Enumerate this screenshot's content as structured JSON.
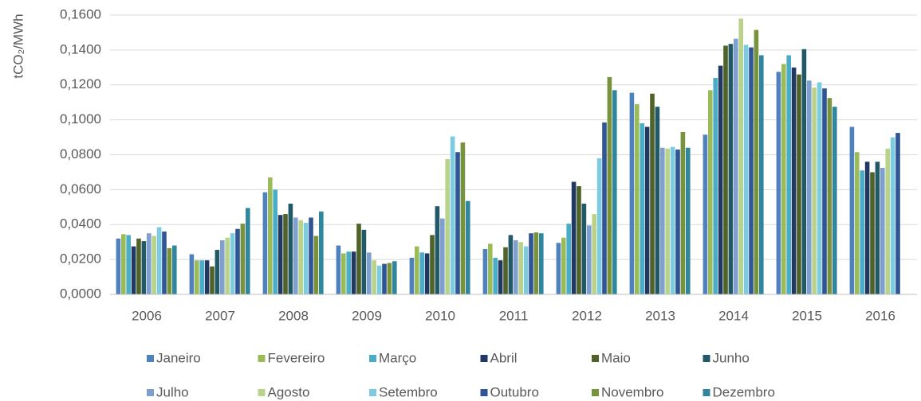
{
  "chart_data": {
    "type": "bar",
    "y_label": "tCO₂/MWh",
    "categories": [
      "2006",
      "2007",
      "2008",
      "2009",
      "2010",
      "2011",
      "2012",
      "2013",
      "2014",
      "2015",
      "2016"
    ],
    "ylim": [
      0,
      0.16
    ],
    "yticks": [
      {
        "value": 0,
        "label": "0,0000"
      },
      {
        "value": 0.02,
        "label": "0,0200"
      },
      {
        "value": 0.04,
        "label": "0,0400"
      },
      {
        "value": 0.06,
        "label": "0,0600"
      },
      {
        "value": 0.08,
        "label": "0,0800"
      },
      {
        "value": 0.1,
        "label": "0,1000"
      },
      {
        "value": 0.12,
        "label": "0,1200"
      },
      {
        "value": 0.14,
        "label": "0,1400"
      },
      {
        "value": 0.16,
        "label": "0,1600"
      }
    ],
    "grid": true,
    "legend": "bottom",
    "series": [
      {
        "name": "Janeiro",
        "color": "#4f81bd",
        "values": [
          0.032,
          0.023,
          0.0585,
          0.028,
          0.021,
          0.026,
          0.0295,
          0.1155,
          0.0915,
          0.1275,
          0.096
        ]
      },
      {
        "name": "Fevereiro",
        "color": "#9bbb59",
        "values": [
          0.0345,
          0.0195,
          0.067,
          0.0235,
          0.0275,
          0.029,
          0.0325,
          0.109,
          0.117,
          0.132,
          0.0815
        ]
      },
      {
        "name": "Março",
        "color": "#4bacc6",
        "values": [
          0.034,
          0.0195,
          0.06,
          0.0245,
          0.024,
          0.021,
          0.0405,
          0.098,
          0.124,
          0.137,
          0.071
        ]
      },
      {
        "name": "Abril",
        "color": "#1f3864",
        "values": [
          0.0275,
          0.0195,
          0.0455,
          0.0245,
          0.0235,
          0.0195,
          0.0645,
          0.096,
          0.131,
          0.13,
          0.076
        ]
      },
      {
        "name": "Maio",
        "color": "#4f6228",
        "values": [
          0.032,
          0.016,
          0.046,
          0.0405,
          0.034,
          0.027,
          0.062,
          0.115,
          0.1425,
          0.126,
          0.07
        ]
      },
      {
        "name": "Junho",
        "color": "#215968",
        "values": [
          0.0305,
          0.0255,
          0.052,
          0.037,
          0.0505,
          0.034,
          0.052,
          0.1075,
          0.1435,
          0.1405,
          0.076
        ]
      },
      {
        "name": "Julho",
        "color": "#7f9fcf",
        "values": [
          0.035,
          0.031,
          0.044,
          0.024,
          0.0435,
          0.031,
          0.0395,
          0.084,
          0.1465,
          0.1225,
          0.0725
        ]
      },
      {
        "name": "Agosto",
        "color": "#b9d38b",
        "values": [
          0.0335,
          0.0325,
          0.0425,
          0.0195,
          0.0775,
          0.03,
          0.046,
          0.0835,
          0.158,
          0.1185,
          0.0835
        ]
      },
      {
        "name": "Setembro",
        "color": "#7dcbe0",
        "values": [
          0.0385,
          0.035,
          0.041,
          0.0165,
          0.0905,
          0.0275,
          0.078,
          0.0845,
          0.143,
          0.1215,
          0.09
        ]
      },
      {
        "name": "Outubro",
        "color": "#2f5597",
        "values": [
          0.036,
          0.0375,
          0.044,
          0.0175,
          0.0815,
          0.035,
          0.0985,
          0.083,
          0.1415,
          0.118,
          0.0925
        ]
      },
      {
        "name": "Novembro",
        "color": "#77933c",
        "values": [
          0.0265,
          0.0405,
          0.0335,
          0.018,
          0.087,
          0.0355,
          0.1245,
          0.093,
          0.1515,
          0.1125,
          null
        ]
      },
      {
        "name": "Dezembro",
        "color": "#31859c",
        "values": [
          0.028,
          0.0495,
          0.0475,
          0.019,
          0.0535,
          0.035,
          0.117,
          0.084,
          0.137,
          0.1075,
          null
        ]
      }
    ]
  }
}
